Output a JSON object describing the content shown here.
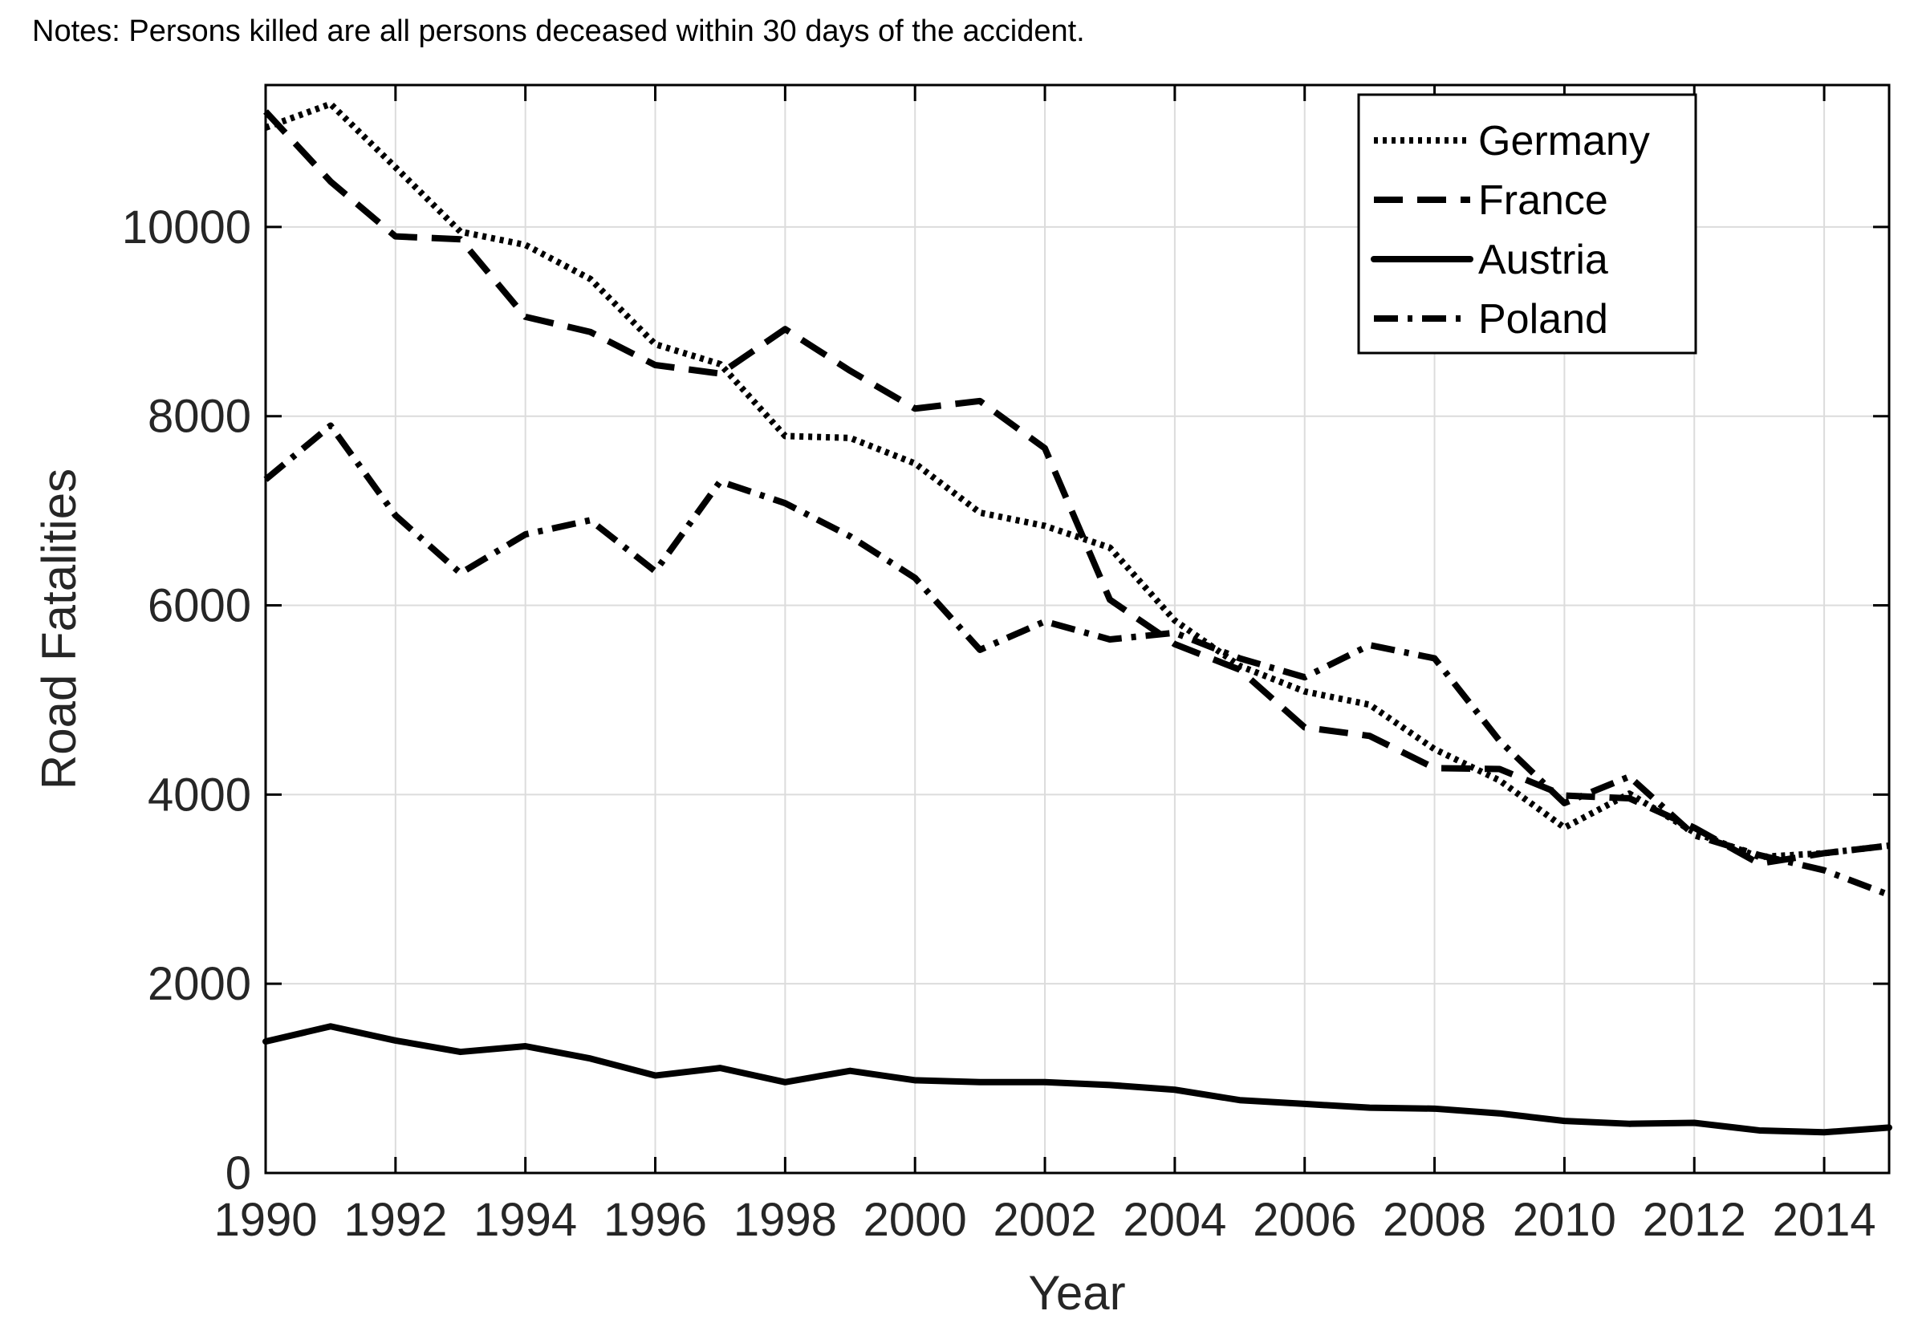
{
  "note": "Notes: Persons killed are all persons deceased within 30 days of the accident.",
  "chart_data": {
    "type": "line",
    "title": "",
    "xlabel": "Year",
    "ylabel": "Road Fatalities",
    "xlim": [
      1990,
      2015
    ],
    "ylim": [
      0,
      11500
    ],
    "grid": true,
    "legend_position": "top-right",
    "x_ticks": [
      1990,
      1992,
      1994,
      1996,
      1998,
      2000,
      2002,
      2004,
      2006,
      2008,
      2010,
      2012,
      2014
    ],
    "x_tick_labels": [
      "1990",
      "1992",
      "1994",
      "1996",
      "1998",
      "2000",
      "2002",
      "2004",
      "2006",
      "2008",
      "2010",
      "2012",
      "2014"
    ],
    "y_ticks": [
      0,
      2000,
      4000,
      6000,
      8000,
      10000
    ],
    "y_tick_labels": [
      "0",
      "2000",
      "4000",
      "6000",
      "8000",
      "10000"
    ],
    "x": [
      1990,
      1991,
      1992,
      1993,
      1994,
      1995,
      1996,
      1997,
      1998,
      1999,
      2000,
      2001,
      2002,
      2003,
      2004,
      2005,
      2006,
      2007,
      2008,
      2009,
      2010,
      2011,
      2012,
      2013,
      2014,
      2015
    ],
    "series": [
      {
        "name": "Germany",
        "style": "dotted",
        "values": [
          11050,
          11300,
          10630,
          9950,
          9810,
          9450,
          8760,
          8550,
          7790,
          7770,
          7500,
          6980,
          6840,
          6610,
          5840,
          5360,
          5090,
          4950,
          4480,
          4150,
          3650,
          4010,
          3600,
          3340,
          3380,
          3460
        ]
      },
      {
        "name": "France",
        "style": "dashed",
        "values": [
          11220,
          10480,
          9900,
          9870,
          9050,
          8890,
          8540,
          8450,
          8920,
          8480,
          8080,
          8160,
          7660,
          6060,
          5590,
          5320,
          4710,
          4620,
          4280,
          4270,
          3990,
          3960,
          3650,
          3270,
          3380,
          3460
        ]
      },
      {
        "name": "Austria",
        "style": "solid",
        "values": [
          1390,
          1550,
          1400,
          1280,
          1340,
          1210,
          1030,
          1110,
          960,
          1080,
          980,
          960,
          960,
          930,
          880,
          770,
          730,
          690,
          680,
          630,
          550,
          520,
          530,
          450,
          430,
          480
        ]
      },
      {
        "name": "Poland",
        "style": "dash-dot",
        "values": [
          7330,
          7900,
          6950,
          6340,
          6750,
          6900,
          6360,
          7310,
          7080,
          6730,
          6290,
          5530,
          5830,
          5640,
          5710,
          5440,
          5240,
          5580,
          5440,
          4570,
          3910,
          4190,
          3570,
          3360,
          3200,
          2940
        ]
      }
    ]
  }
}
